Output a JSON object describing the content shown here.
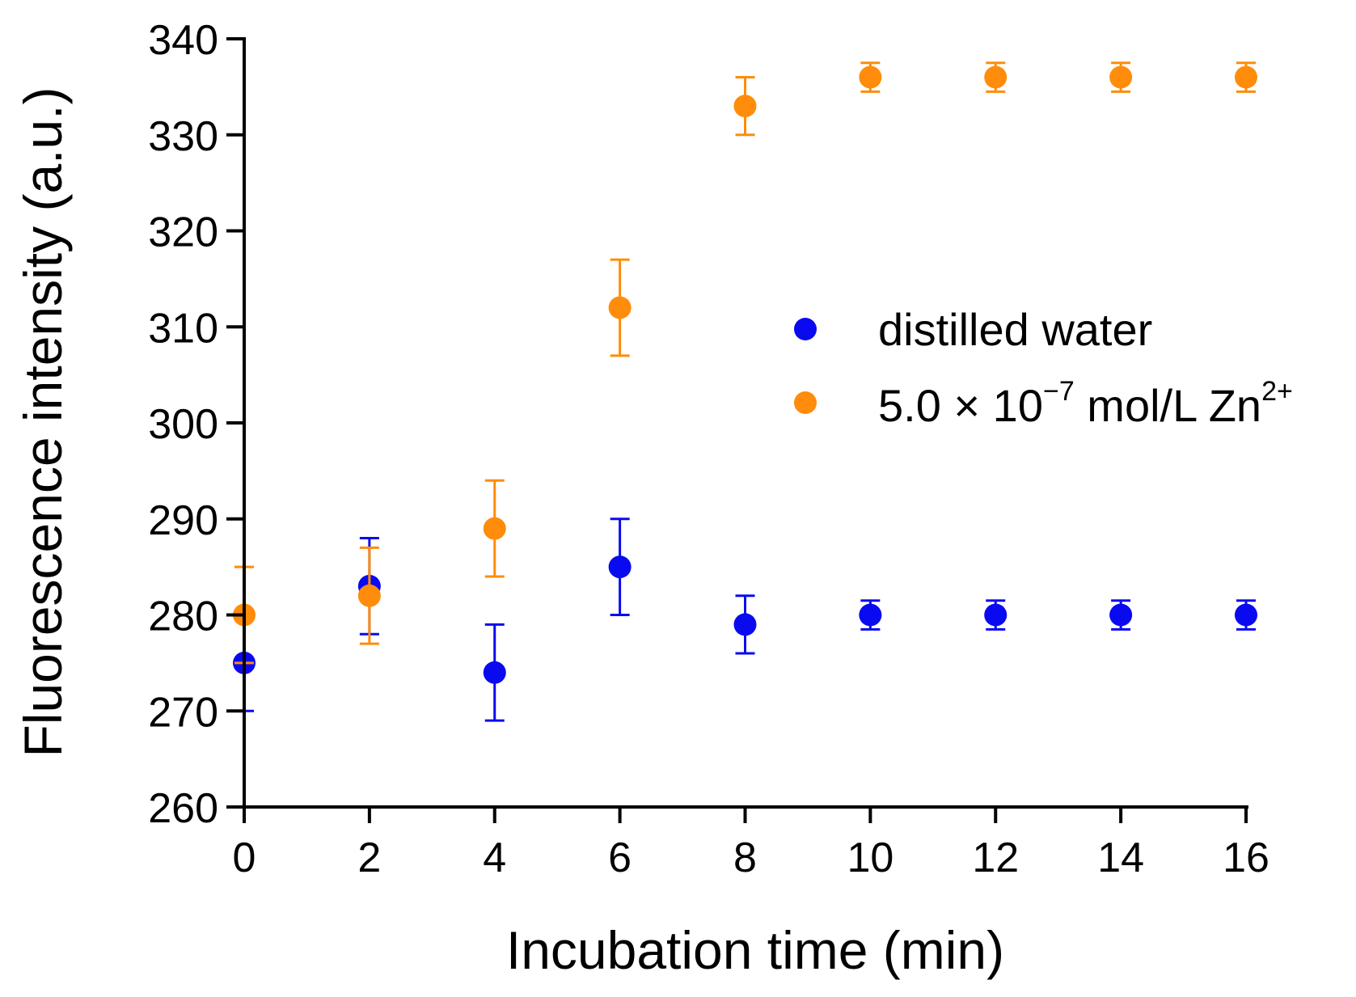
{
  "chart_data": {
    "type": "scatter",
    "title": "",
    "xlabel": "Incubation time (min)",
    "ylabel": "Fluorescence intensity (a.u.)",
    "xlim": [
      0,
      16
    ],
    "ylim": [
      260,
      340
    ],
    "xticks": [
      0,
      2,
      4,
      6,
      8,
      10,
      12,
      14,
      16
    ],
    "yticks": [
      260,
      270,
      280,
      290,
      300,
      310,
      320,
      330,
      340
    ],
    "grid": false,
    "legend_position": "right",
    "series": [
      {
        "name": "distilled water",
        "color": "#0a0af0",
        "x": [
          0,
          2,
          4,
          6,
          8,
          10,
          12,
          14,
          16
        ],
        "y": [
          275,
          283,
          274,
          285,
          279,
          280,
          280,
          280,
          280
        ],
        "err": [
          5,
          5,
          5,
          5,
          3,
          1.5,
          1.5,
          1.5,
          1.5
        ]
      },
      {
        "name": "5.0 × 10",
        "name_exp": "−7",
        "name_unit": " mol/L Zn",
        "name_charge": "2+",
        "color": "#ff8c0a",
        "x": [
          0,
          2,
          4,
          6,
          8,
          10,
          12,
          14,
          16
        ],
        "y": [
          280,
          282,
          289,
          312,
          333,
          336,
          336,
          336,
          336
        ],
        "err": [
          5,
          5,
          5,
          5,
          3,
          1.5,
          1.5,
          1.5,
          1.5
        ]
      }
    ]
  }
}
